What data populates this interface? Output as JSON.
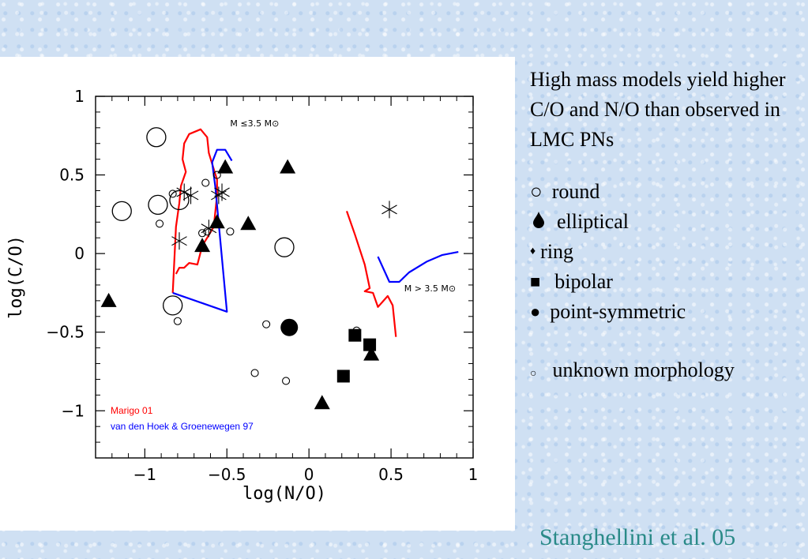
{
  "chart_data": {
    "type": "scatter",
    "xlabel": "log(N/O)",
    "ylabel": "log(C/O)",
    "xlim": [
      -1.3,
      1.0
    ],
    "ylim": [
      -1.3,
      1.0
    ],
    "x_ticks": [
      -1,
      -0.5,
      0,
      0.5,
      1
    ],
    "x_tick_labels": [
      "−1",
      "−0.5",
      "0",
      "0.5",
      "1"
    ],
    "y_ticks": [
      -1,
      -0.5,
      0,
      0.5,
      1
    ],
    "y_tick_labels": [
      "−1",
      "−0.5",
      "0",
      "0.5",
      "1"
    ],
    "model_lines": [
      {
        "name": "Marigo 01",
        "color": "#ff0000",
        "segments": [
          [
            [
              -0.83,
              -0.25
            ],
            [
              -0.81,
              0.17
            ],
            [
              -0.79,
              0.32
            ],
            [
              -0.78,
              0.43
            ],
            [
              -0.75,
              0.52
            ],
            [
              -0.77,
              0.6
            ],
            [
              -0.76,
              0.7
            ],
            [
              -0.73,
              0.76
            ],
            [
              -0.66,
              0.79
            ],
            [
              -0.62,
              0.74
            ],
            [
              -0.61,
              0.64
            ],
            [
              -0.59,
              0.57
            ],
            [
              -0.56,
              0.47
            ],
            [
              -0.56,
              0.37
            ],
            [
              -0.57,
              0.27
            ],
            [
              -0.58,
              0.17
            ],
            [
              -0.62,
              0.1
            ],
            [
              -0.65,
              0.05
            ],
            [
              -0.68,
              -0.07
            ],
            [
              -0.73,
              -0.06
            ],
            [
              -0.76,
              -0.09
            ],
            [
              -0.79,
              -0.09
            ],
            [
              -0.81,
              -0.13
            ]
          ],
          [
            [
              0.23,
              0.27
            ],
            [
              0.28,
              0.12
            ],
            [
              0.34,
              -0.07
            ],
            [
              0.37,
              -0.22
            ],
            [
              0.34,
              -0.24
            ],
            [
              0.39,
              -0.25
            ],
            [
              0.42,
              -0.34
            ],
            [
              0.48,
              -0.27
            ],
            [
              0.51,
              -0.33
            ],
            [
              0.53,
              -0.53
            ]
          ]
        ]
      },
      {
        "name": "van den Hoek & Groenewegen 97",
        "color": "#0000ff",
        "segments": [
          [
            [
              -0.83,
              -0.25
            ],
            [
              -0.5,
              -0.37
            ],
            [
              -0.57,
              0.42
            ],
            [
              -0.59,
              0.58
            ],
            [
              -0.56,
              0.66
            ],
            [
              -0.51,
              0.66
            ],
            [
              -0.47,
              0.59
            ]
          ],
          [
            [
              0.42,
              -0.02
            ],
            [
              0.49,
              -0.18
            ],
            [
              0.55,
              -0.18
            ],
            [
              0.61,
              -0.12
            ],
            [
              0.72,
              -0.05
            ],
            [
              0.81,
              -0.01
            ],
            [
              0.91,
              0.01
            ]
          ]
        ]
      }
    ],
    "points": {
      "round_large": [
        [
          -0.93,
          0.74
        ],
        [
          -1.14,
          0.27
        ],
        [
          -0.92,
          0.31
        ],
        [
          -0.79,
          0.34
        ],
        [
          -0.15,
          0.04
        ],
        [
          -0.83,
          -0.33
        ]
      ],
      "round_small": [
        [
          -0.83,
          0.38
        ],
        [
          -0.91,
          0.19
        ],
        [
          -0.63,
          0.45
        ],
        [
          -0.56,
          0.5
        ],
        [
          -0.62,
          0.14
        ],
        [
          -0.65,
          0.13
        ],
        [
          -0.48,
          0.14
        ],
        [
          -0.8,
          -0.43
        ],
        [
          -0.26,
          -0.45
        ],
        [
          -0.33,
          -0.76
        ],
        [
          -0.14,
          -0.81
        ],
        [
          0.29,
          -0.49
        ]
      ],
      "elliptical": [
        [
          -0.51,
          0.55
        ],
        [
          -0.13,
          0.55
        ],
        [
          -0.56,
          0.2
        ],
        [
          -0.37,
          0.19
        ],
        [
          -0.65,
          0.05
        ],
        [
          -1.22,
          -0.3
        ],
        [
          0.38,
          -0.64
        ],
        [
          0.08,
          -0.95
        ]
      ],
      "bipolar": [
        [
          0.28,
          -0.52
        ],
        [
          0.37,
          -0.58
        ],
        [
          0.21,
          -0.78
        ]
      ],
      "point_symmetric": [
        [
          -0.12,
          -0.47
        ]
      ],
      "stars": [
        [
          -0.76,
          0.39
        ],
        [
          -0.72,
          0.37
        ],
        [
          -0.61,
          0.16
        ],
        [
          -0.79,
          0.08
        ],
        [
          -0.53,
          0.39
        ],
        [
          -0.55,
          0.37
        ],
        [
          0.49,
          0.28
        ]
      ]
    },
    "annotations": [
      {
        "text": "M  ≤3.5 M⊙",
        "x": -0.48,
        "y": 0.81
      },
      {
        "text": "M > 3.5 M⊙",
        "x": 0.58,
        "y": -0.24
      }
    ],
    "legend": [
      {
        "label": "Marigo 01",
        "color": "#ff0000"
      },
      {
        "label": "van den Hoek & Groenewegen 97",
        "color": "#0000ff"
      }
    ]
  },
  "side_text": {
    "paragraph": "High mass models yield higher C/O and N/O than observed in LMC PNs",
    "legend_items": [
      {
        "symbol": "○",
        "label": "round"
      },
      {
        "symbol": "🌢",
        "label": "elliptical"
      },
      {
        "symbol": "♦",
        "label": "ring"
      },
      {
        "symbol": "■",
        "label": "bipolar"
      },
      {
        "symbol": "●",
        "label": "point-symmetric"
      }
    ],
    "unknown_symbol": "○",
    "unknown_label": "unknown morphology"
  },
  "credit": "Stanghellini et al. 05"
}
